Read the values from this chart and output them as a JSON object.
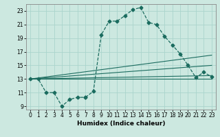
{
  "title": "",
  "xlabel": "Humidex (Indice chaleur)",
  "xlim": [
    -0.5,
    23.5
  ],
  "ylim": [
    8.5,
    24.0
  ],
  "xticks": [
    0,
    1,
    2,
    3,
    4,
    5,
    6,
    7,
    8,
    9,
    10,
    11,
    12,
    13,
    14,
    15,
    16,
    17,
    18,
    19,
    20,
    21,
    22,
    23
  ],
  "yticks": [
    9,
    11,
    13,
    15,
    17,
    19,
    21,
    23
  ],
  "bg_color": "#cce8e0",
  "line_color": "#1a6b5e",
  "grid_color": "#aad4cc",
  "main_curve_x1": [
    0,
    1,
    2,
    3,
    4,
    5,
    6,
    7
  ],
  "main_curve_y1": [
    13,
    13,
    11,
    11,
    9,
    10,
    10.3,
    10.3
  ],
  "main_curve_x2": [
    7,
    8,
    9,
    10,
    11,
    12,
    13,
    14,
    15,
    16,
    17,
    18,
    19,
    20,
    21,
    22,
    23
  ],
  "main_curve_y2": [
    10.3,
    11.2,
    19.5,
    21.5,
    21.5,
    22.3,
    23.2,
    23.5,
    21.3,
    21.0,
    19.3,
    18.0,
    16.7,
    15.0,
    13.2,
    14.0,
    13.3
  ],
  "flat_lines": [
    {
      "x": [
        0,
        23
      ],
      "y": [
        13.0,
        13.0
      ]
    },
    {
      "x": [
        0,
        23
      ],
      "y": [
        13.0,
        13.5
      ]
    },
    {
      "x": [
        0,
        23
      ],
      "y": [
        13.0,
        15.0
      ]
    },
    {
      "x": [
        0,
        23
      ],
      "y": [
        13.0,
        16.5
      ]
    }
  ]
}
